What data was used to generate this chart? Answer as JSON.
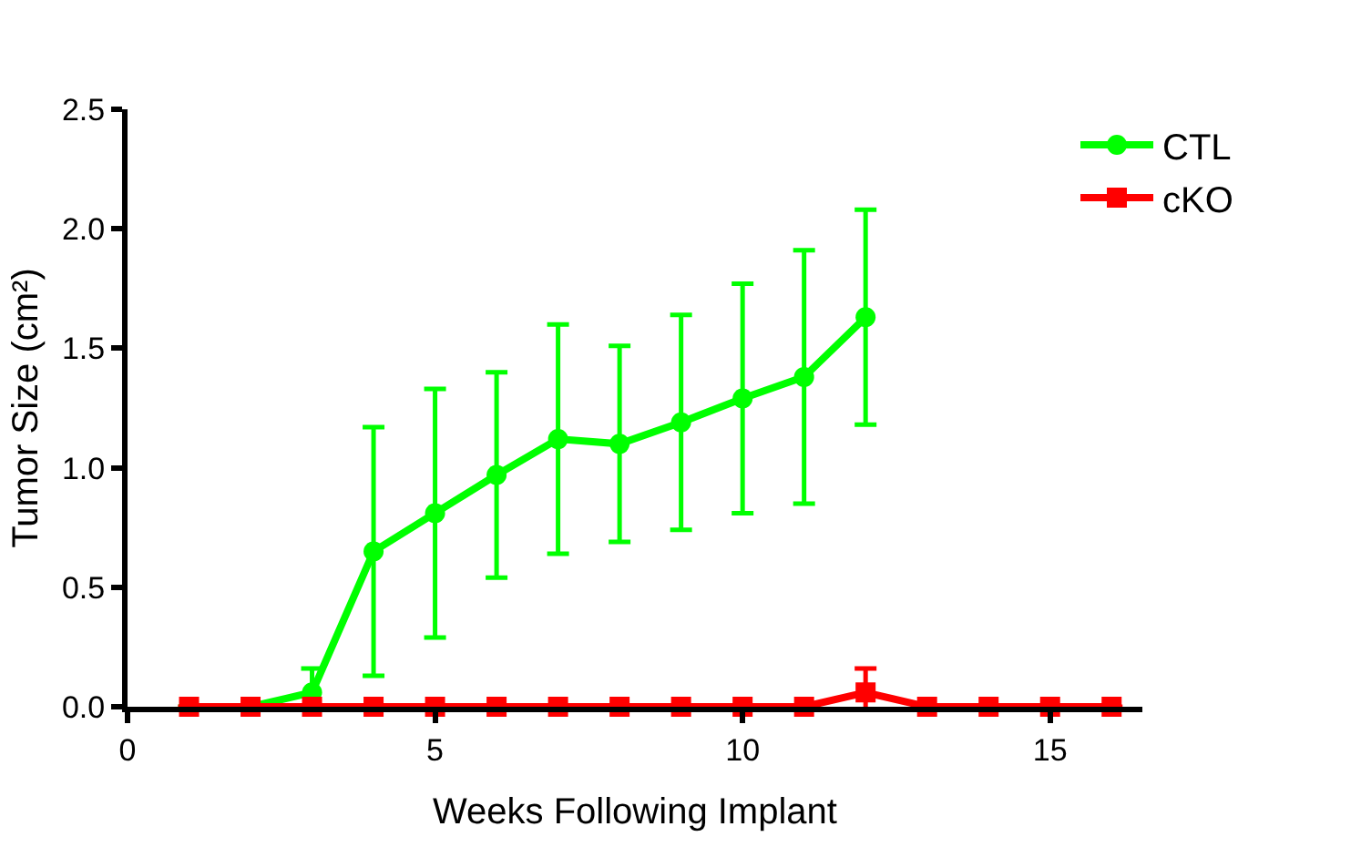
{
  "chart_data": {
    "type": "line",
    "xlabel": "Weeks Following Implant",
    "ylabel": "Tumor Size (cm²)",
    "xlim": [
      0,
      16.5
    ],
    "xticks": [
      0,
      5,
      10,
      15
    ],
    "ylim": [
      0,
      2.5
    ],
    "yticks": [
      {
        "value": 0,
        "label": "0.0"
      },
      {
        "value": 0.5,
        "label": "0.5"
      },
      {
        "value": 1,
        "label": "1.0"
      },
      {
        "value": 1.5,
        "label": "1.5"
      },
      {
        "value": 2,
        "label": "2.0"
      },
      {
        "value": 2.5,
        "label": "2.5"
      }
    ],
    "legend": "top right",
    "series": [
      {
        "name": "CTL",
        "color": "#00ff00",
        "marker": "circle",
        "x": [
          1,
          2,
          3,
          4,
          5,
          6,
          7,
          8,
          9,
          10,
          11,
          12
        ],
        "values": [
          0,
          0,
          0.06,
          0.65,
          0.81,
          0.97,
          1.12,
          1.1,
          1.19,
          1.29,
          1.38,
          1.63
        ],
        "errors": [
          null,
          null,
          0.1,
          0.52,
          0.52,
          0.43,
          0.48,
          0.41,
          0.45,
          0.48,
          0.53,
          0.45
        ]
      },
      {
        "name": "cKO",
        "color": "#ff0000",
        "marker": "square",
        "x": [
          1,
          2,
          3,
          4,
          5,
          6,
          7,
          8,
          9,
          10,
          11,
          12,
          13,
          14,
          15,
          16
        ],
        "values": [
          0,
          0,
          0,
          0,
          0,
          0,
          0,
          0,
          0,
          0,
          0,
          0.06,
          0,
          0,
          0,
          0
        ],
        "errors": [
          null,
          null,
          null,
          null,
          null,
          null,
          null,
          null,
          null,
          null,
          null,
          0.1,
          null,
          null,
          null,
          null
        ]
      }
    ]
  }
}
